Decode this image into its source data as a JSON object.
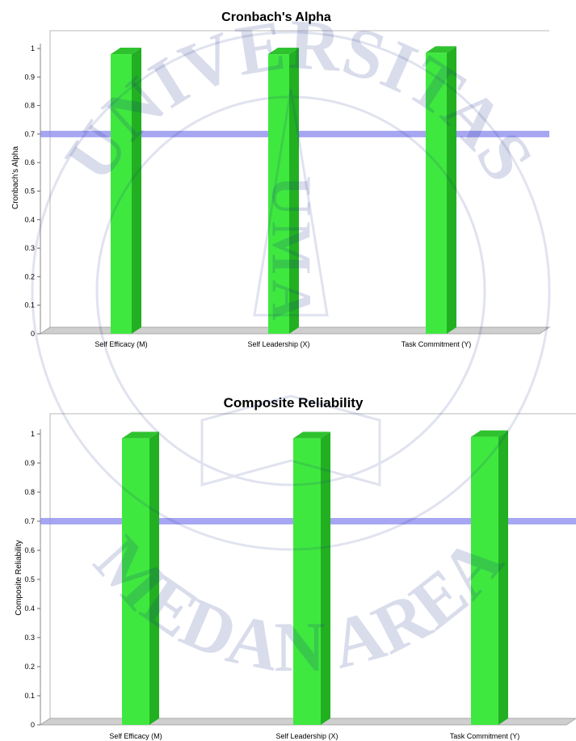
{
  "colors": {
    "bar_front": "#3fe83f",
    "bar_side": "#22b022",
    "bar_top": "#2fc22f",
    "threshold": "#8888ee",
    "watermark": "#1a2e8a"
  },
  "watermark": {
    "arc_text": "UNIVERSITAS",
    "bottom_text": "MEDAN AREA",
    "center_text": "UMA"
  },
  "chart_data": [
    {
      "type": "bar",
      "title": "Cronbach's Alpha",
      "ylabel": "Cronbach's Alpha",
      "xlabel": "",
      "categories": [
        "Self Efficacy (M)",
        "Self Leadership (X)",
        "Task Commitment (Y)"
      ],
      "values": [
        0.98,
        0.98,
        0.985
      ],
      "ylim": [
        0,
        1
      ],
      "yticks": [
        "0",
        "0.1",
        "0.2",
        "0.3",
        "0.4",
        "0.5",
        "0.6",
        "0.7",
        "0.8",
        "0.9",
        "1"
      ],
      "threshold": 0.7,
      "grid": false,
      "legend": "none"
    },
    {
      "type": "bar",
      "title": "Composite Reliability",
      "ylabel": "Composite Reliability",
      "xlabel": "",
      "categories": [
        "Self Efficacy (M)",
        "Self Leadership (X)",
        "Task Commitment (Y)"
      ],
      "values": [
        0.985,
        0.985,
        0.99
      ],
      "ylim": [
        0,
        1
      ],
      "yticks": [
        "0",
        "0.1",
        "0.2",
        "0.3",
        "0.4",
        "0.5",
        "0.6",
        "0.7",
        "0.8",
        "0.9",
        "1"
      ],
      "threshold": 0.7,
      "grid": false,
      "legend": "none"
    }
  ]
}
